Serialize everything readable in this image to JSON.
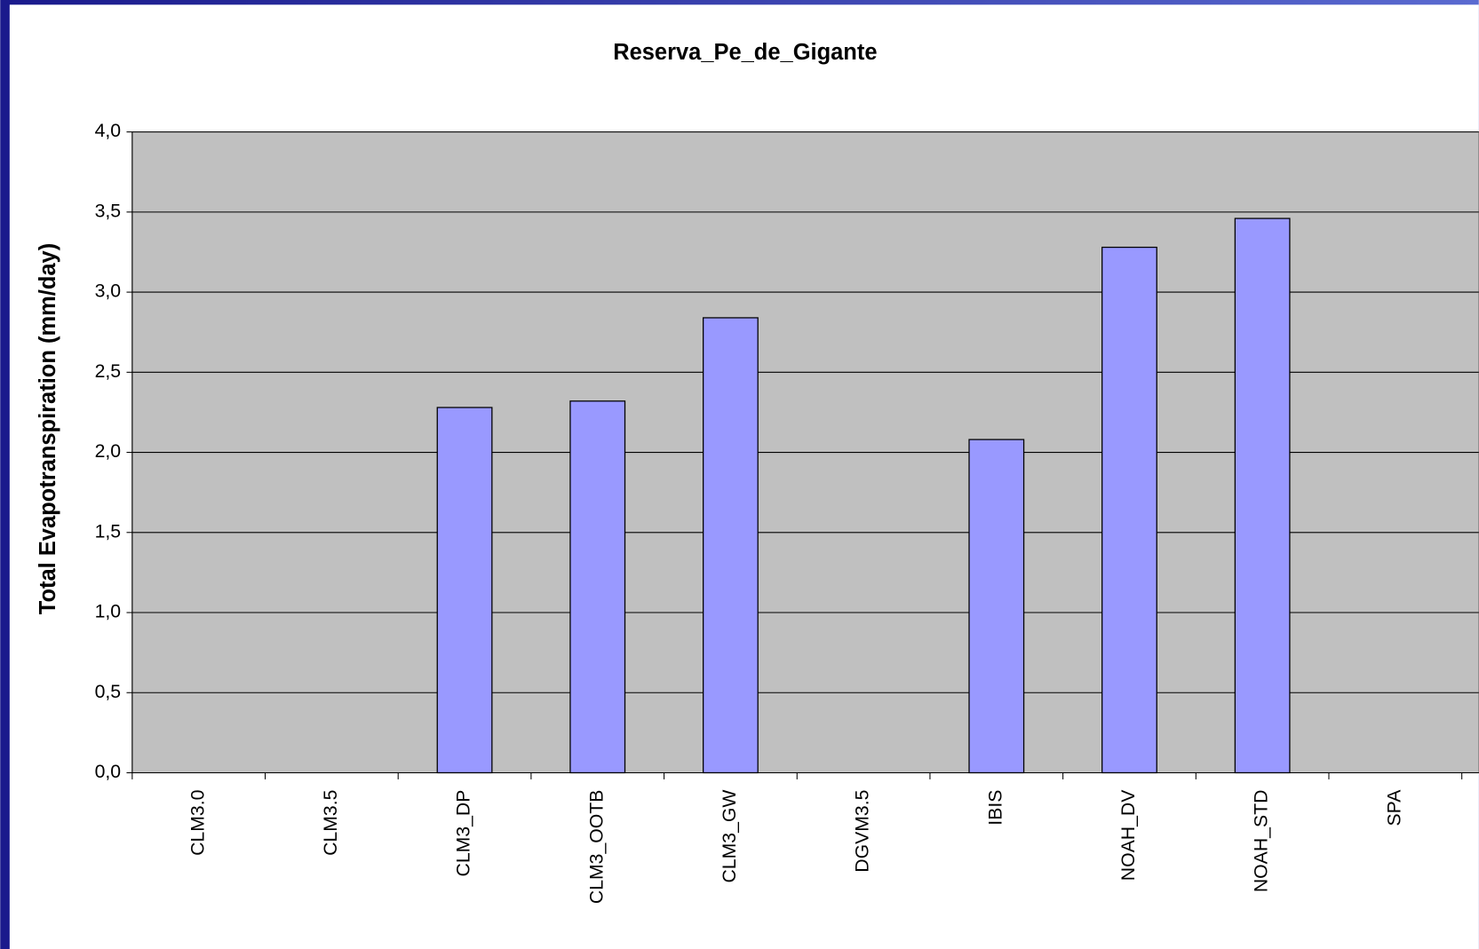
{
  "chart_data": {
    "type": "bar",
    "title": "Reserva_Pe_de_Gigante",
    "y_label": "Total Evapotranspiration (mm/day)",
    "categories": [
      "CLM3.0",
      "CLM3.5",
      "CLM3_DP",
      "CLM3_OOTB",
      "CLM3_GW",
      "DGVM3.5",
      "IBIS",
      "NOAH_DV",
      "NOAH_STD",
      "SPA"
    ],
    "values": [
      null,
      null,
      2.28,
      2.32,
      2.84,
      null,
      2.08,
      3.28,
      3.46,
      null
    ],
    "color": "#9999ff",
    "ylim": [
      0,
      4
    ],
    "yticks": [
      {
        "value": 0,
        "label": "0,0"
      },
      {
        "value": 0.5,
        "label": "0,5"
      },
      {
        "value": 1,
        "label": "1,0"
      },
      {
        "value": 1.5,
        "label": "1,5"
      },
      {
        "value": 2,
        "label": "2,0"
      },
      {
        "value": 2.5,
        "label": "2,5"
      },
      {
        "value": 3,
        "label": "3,0"
      },
      {
        "value": 3.5,
        "label": "3,5"
      },
      {
        "value": 4,
        "label": "4,0"
      }
    ],
    "grid": true
  }
}
